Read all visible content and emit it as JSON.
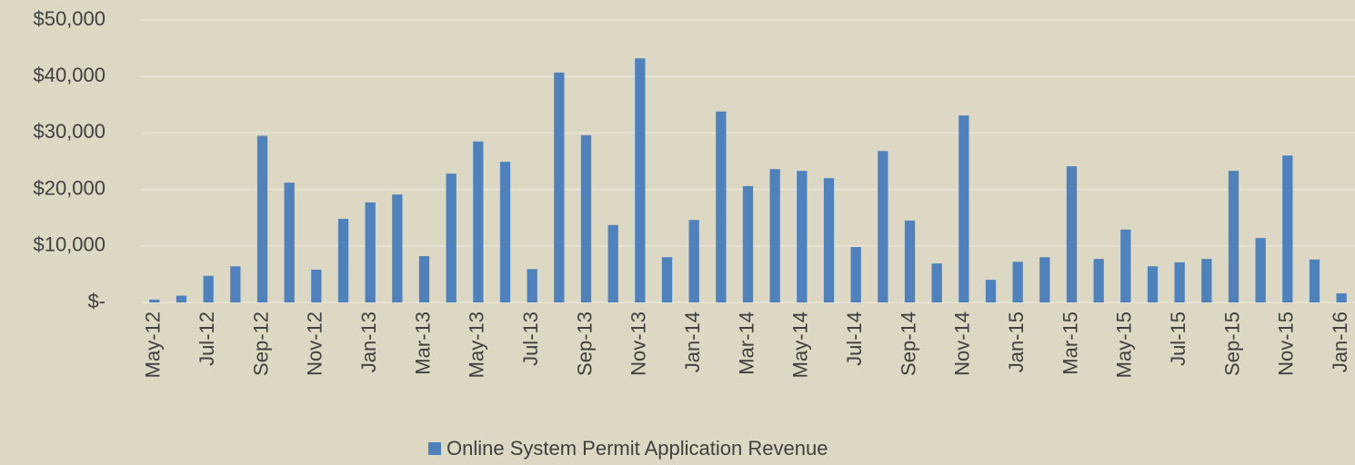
{
  "chart_data": {
    "type": "bar",
    "categories": [
      "May-12",
      null,
      "Jul-12",
      null,
      "Sep-12",
      null,
      "Nov-12",
      null,
      "Jan-13",
      null,
      "Mar-13",
      null,
      "May-13",
      null,
      "Jul-13",
      null,
      "Sep-13",
      null,
      "Nov-13",
      null,
      "Jan-14",
      null,
      "Mar-14",
      null,
      "May-14",
      null,
      "Jul-14",
      null,
      "Sep-14",
      null,
      "Nov-14",
      null,
      "Jan-15",
      null,
      "Mar-15",
      null,
      "May-15",
      null,
      "Jul-15",
      null,
      "Sep-15",
      null,
      "Nov-15",
      null,
      "Jan-16"
    ],
    "series": [
      {
        "name": "Online System Permit Application Revenue",
        "color": "#4f81bd",
        "values": [
          500,
          1200,
          4700,
          6400,
          29500,
          21200,
          5800,
          14800,
          17700,
          19100,
          8200,
          22800,
          28500,
          24900,
          5900,
          40700,
          29600,
          13700,
          43200,
          8000,
          14600,
          33800,
          20600,
          23600,
          23300,
          22000,
          9800,
          26800,
          14500,
          6900,
          33100,
          4000,
          7200,
          8000,
          24100,
          7700,
          12900,
          6400,
          7100,
          7700,
          23300,
          11400,
          26000,
          7600,
          1600
        ]
      }
    ],
    "ylim": [
      0,
      50000
    ],
    "yticks": [
      {
        "value": 0,
        "label": "$-"
      },
      {
        "value": 10000,
        "label": "$10,000"
      },
      {
        "value": 20000,
        "label": "$20,000"
      },
      {
        "value": 30000,
        "label": "$30,000"
      },
      {
        "value": 40000,
        "label": "$40,000"
      },
      {
        "value": 50000,
        "label": "$50,000"
      }
    ],
    "grid": true,
    "legend": "bottom"
  }
}
